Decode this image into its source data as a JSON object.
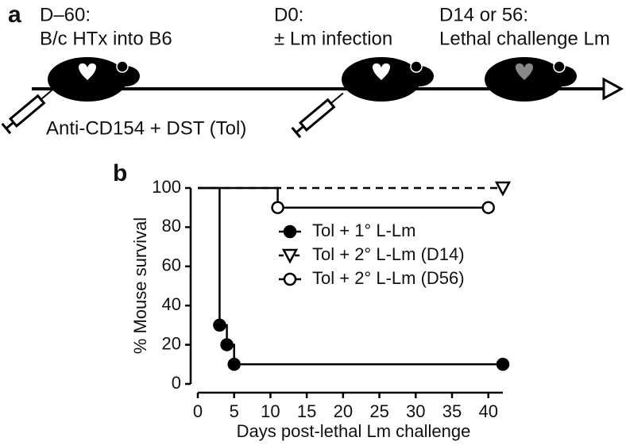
{
  "timeline": {
    "label": "a",
    "events": [
      {
        "day": "D–60:",
        "text": "B/c HTx into B6"
      },
      {
        "day": "D0:",
        "text": "± Lm infection"
      },
      {
        "day": "D14 or 56:",
        "text": "Lethal challenge Lm"
      }
    ],
    "treatment": "Anti-CD154 + DST (Tol)"
  },
  "chart_data": {
    "type": "line",
    "panel_label": "b",
    "step": true,
    "xlabel": "Days post-lethal Lm challenge",
    "ylabel": "% Mouse survival",
    "xlim": [
      0,
      42
    ],
    "xticks": [
      0,
      5,
      10,
      15,
      20,
      25,
      30,
      35,
      40
    ],
    "ylim": [
      0,
      100
    ],
    "yticks": [
      0,
      20,
      40,
      60,
      80,
      100
    ],
    "legend": "upper right",
    "series": [
      {
        "name": "Tol + 1° L-Lm",
        "color": "#000000",
        "marker": "circle",
        "marker_fill": "filled",
        "dashed": false,
        "x": [
          0,
          3,
          4,
          5,
          42
        ],
        "values": [
          100,
          30,
          20,
          10,
          10
        ]
      },
      {
        "name": "Tol + 2° L-Lm (D14)",
        "color": "#000000",
        "marker": "triangle-down",
        "marker_fill": "open",
        "dashed": true,
        "x": [
          0,
          42
        ],
        "values": [
          100,
          100
        ]
      },
      {
        "name": "Tol + 2° L-Lm (D56)",
        "color": "#000000",
        "marker": "circle",
        "marker_fill": "open",
        "dashed": false,
        "x": [
          0,
          11,
          40
        ],
        "values": [
          100,
          90,
          90
        ]
      }
    ]
  }
}
